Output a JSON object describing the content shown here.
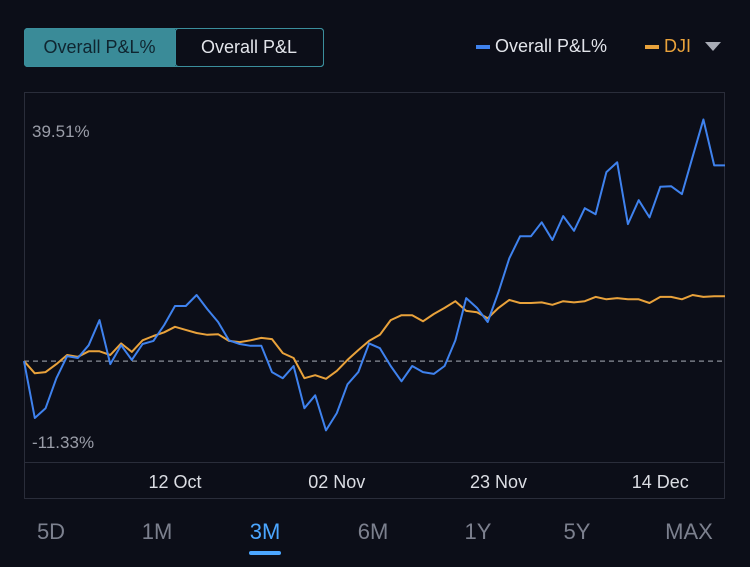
{
  "toggle": {
    "options": [
      "Overall P&L%",
      "Overall P&L"
    ],
    "active": 0
  },
  "chart_data": {
    "type": "line",
    "categories": [
      null,
      null,
      null,
      null,
      null,
      null,
      null,
      null,
      null,
      null,
      null,
      null,
      null,
      null,
      "12 Oct",
      null,
      null,
      null,
      null,
      null,
      null,
      null,
      null,
      null,
      null,
      null,
      null,
      null,
      null,
      "02 Nov",
      null,
      null,
      null,
      null,
      null,
      null,
      null,
      null,
      null,
      null,
      null,
      null,
      null,
      null,
      "23 Nov",
      null,
      null,
      null,
      null,
      null,
      null,
      null,
      null,
      null,
      null,
      null,
      null,
      null,
      null,
      "14 Dec",
      null,
      null,
      null,
      null,
      null,
      null
    ],
    "series": [
      {
        "name": "Overall P&L%",
        "color": "#3f82ee",
        "values": [
          0,
          -9.3,
          -7.7,
          -2.8,
          0.8,
          0.5,
          2.6,
          6.7,
          -0.5,
          2.6,
          0.2,
          2.8,
          3.3,
          5.9,
          9.0,
          9.0,
          10.8,
          8.5,
          6.4,
          3.4,
          2.8,
          2.5,
          2.5,
          -1.8,
          -2.8,
          -0.8,
          -7.7,
          -5.6,
          -11.33,
          -8.5,
          -3.8,
          -1.8,
          2.9,
          2.1,
          -0.8,
          -3.3,
          -0.8,
          -1.8,
          -2.1,
          -0.8,
          3.4,
          10.3,
          8.7,
          6.4,
          11.3,
          16.8,
          20.4,
          20.4,
          22.7,
          19.8,
          23.7,
          21.3,
          25.0,
          24.0,
          30.9,
          32.5,
          22.4,
          26.3,
          23.5,
          28.5,
          28.6,
          27.3,
          33.4,
          39.51,
          32.0,
          32.0
        ]
      },
      {
        "name": "DJI",
        "color": "#e9a23b",
        "values": [
          0,
          -2.0,
          -1.8,
          -0.5,
          1.0,
          0.7,
          1.6,
          1.6,
          1.0,
          2.9,
          1.5,
          3.4,
          4.1,
          4.7,
          5.6,
          5.1,
          4.6,
          4.3,
          4.4,
          3.3,
          3.1,
          3.4,
          3.8,
          3.6,
          1.3,
          0.5,
          -2.8,
          -2.3,
          -2.9,
          -1.6,
          0.2,
          1.8,
          3.3,
          4.3,
          6.7,
          7.5,
          7.5,
          6.5,
          7.7,
          8.7,
          9.8,
          8.2,
          8.0,
          7.0,
          8.7,
          10.0,
          9.5,
          9.5,
          9.6,
          9.2,
          9.8,
          9.6,
          9.8,
          10.5,
          10.1,
          10.3,
          10.1,
          10.1,
          9.5,
          10.5,
          10.5,
          10.1,
          10.8,
          10.5,
          10.6,
          10.6
        ]
      }
    ],
    "ylim": [
      -16.5,
      44
    ],
    "yticks": [
      {
        "value": 39.51,
        "label": "39.51%"
      },
      {
        "value": -11.33,
        "label": "-11.33%"
      }
    ],
    "legend": "top-right"
  },
  "range_tabs": {
    "options": [
      "5D",
      "1M",
      "3M",
      "6M",
      "1Y",
      "5Y",
      "MAX"
    ],
    "active": 2
  }
}
